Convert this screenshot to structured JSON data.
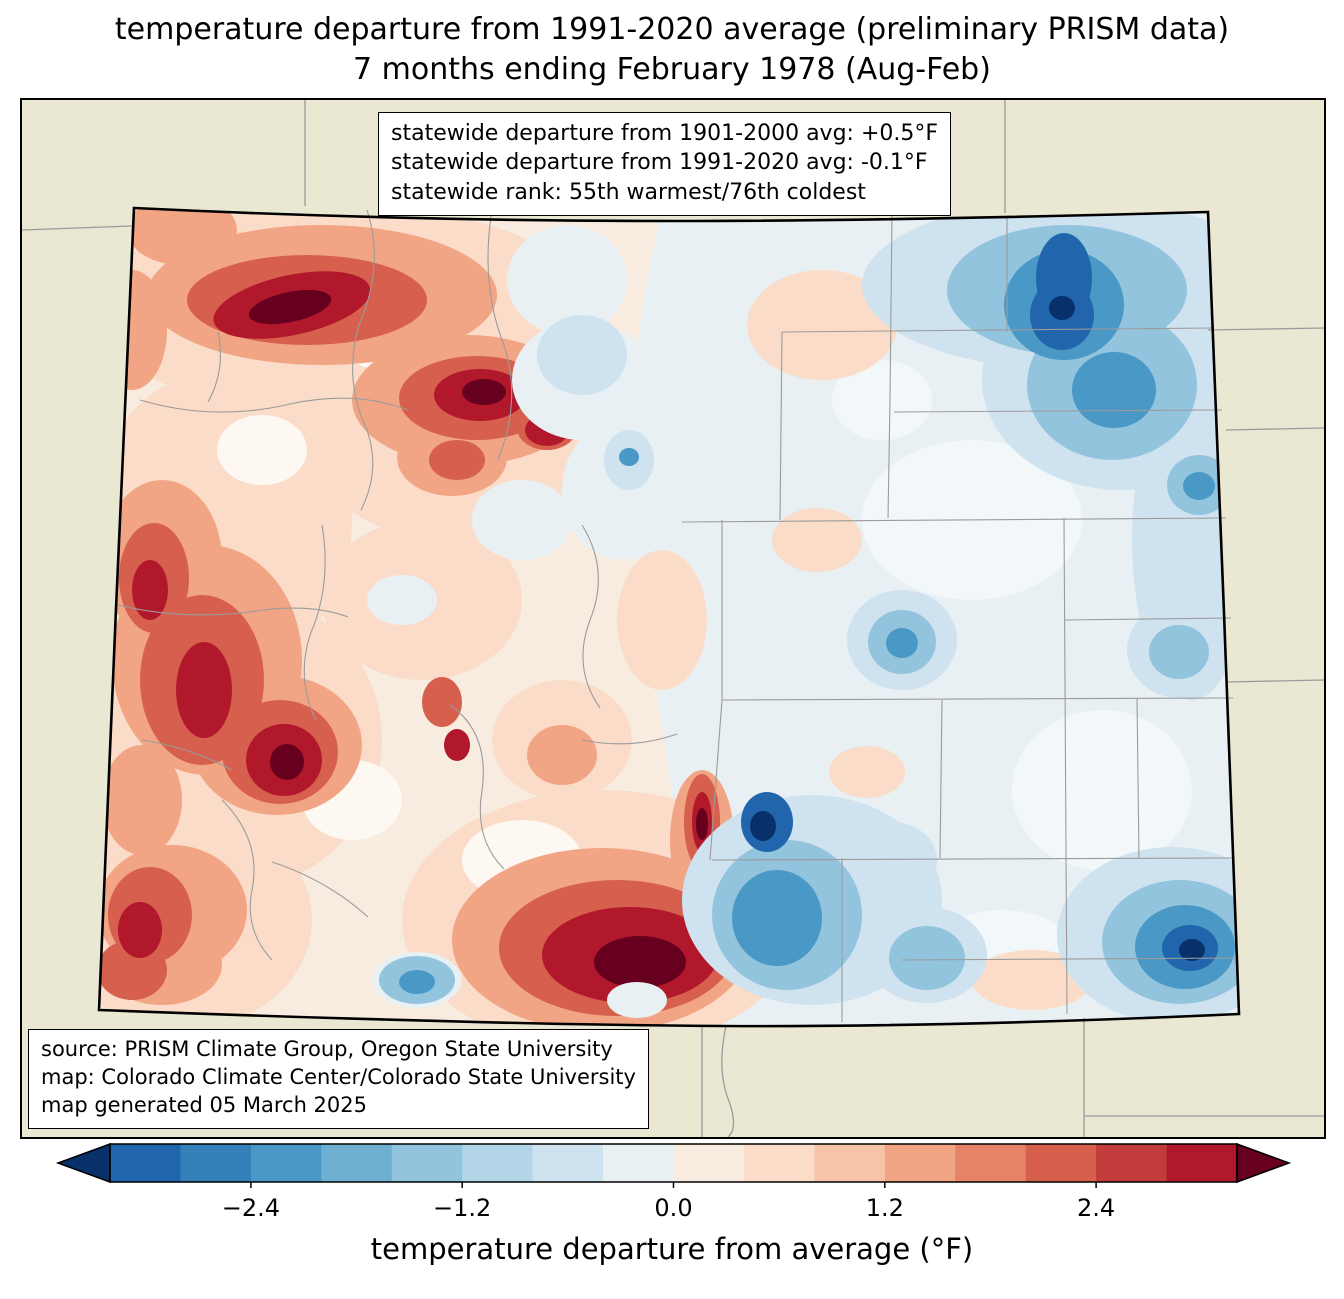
{
  "title": {
    "line1": "temperature departure from 1991-2020 average (preliminary PRISM data)",
    "line2": "7 months ending February 1978 (Aug-Feb)"
  },
  "stats_box": {
    "line1": "statewide departure from 1901-2000 avg: +0.5°F",
    "line2": "statewide departure from 1991-2020 avg: -0.1°F",
    "line3": "statewide rank: 55th warmest/76th coldest"
  },
  "source_box": {
    "line1": "source: PRISM Climate Group, Oregon State University",
    "line2": "map: Colorado Climate Center/Colorado State University",
    "line3": "map generated 05 March 2025"
  },
  "colorbar": {
    "label": "temperature departure from average (°F)",
    "ticks": [
      "−2.4",
      "−1.2",
      "0.0",
      "1.2",
      "2.4"
    ],
    "tick_values": [
      -2.4,
      -1.2,
      0.0,
      1.2,
      2.4
    ],
    "range": [
      -3.2,
      3.2
    ],
    "colors": [
      "#2166ac",
      "#3480b9",
      "#4a98c5",
      "#6fb0d2",
      "#93c4de",
      "#b3d5e8",
      "#cfe2ef",
      "#e9f0f4",
      "#f8ece1",
      "#fadcc8",
      "#f8c4a9",
      "#f2a585",
      "#e68367",
      "#d6604d",
      "#c23c3c",
      "#b2182b"
    ],
    "arrow_left_color": "#08306b",
    "arrow_right_color": "#67001f"
  },
  "map_colors": {
    "background": "#EAE7D2",
    "state_base_warm": "#f8ece1",
    "plains_base_cool": "#e9f0f4",
    "state_border": "#000000",
    "county_border": "#9b9b9b",
    "extreme_warm": "#67001f",
    "extreme_cool": "#08306b"
  }
}
